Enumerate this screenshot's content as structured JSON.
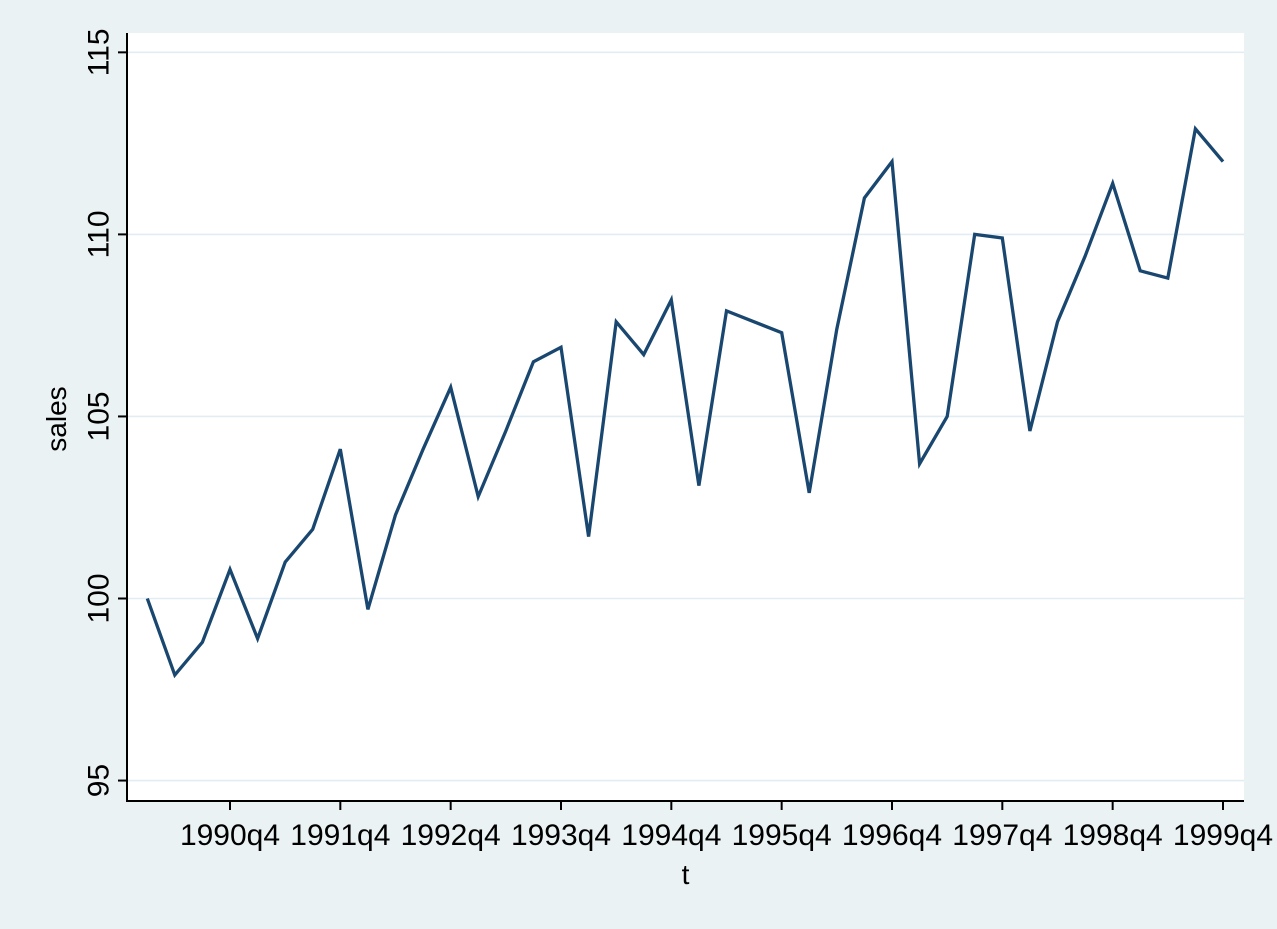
{
  "chart_data": {
    "type": "line",
    "title": "",
    "xlabel": "t",
    "ylabel": "sales",
    "x": [
      "1990q1",
      "1990q2",
      "1990q3",
      "1990q4",
      "1991q1",
      "1991q2",
      "1991q3",
      "1991q4",
      "1992q1",
      "1992q2",
      "1992q3",
      "1992q4",
      "1993q1",
      "1993q2",
      "1993q3",
      "1993q4",
      "1994q1",
      "1994q2",
      "1994q3",
      "1994q4",
      "1995q1",
      "1995q2",
      "1995q3",
      "1995q4",
      "1996q1",
      "1996q2",
      "1996q3",
      "1996q4",
      "1997q1",
      "1997q2",
      "1997q3",
      "1997q4",
      "1998q1",
      "1998q2",
      "1998q3",
      "1998q4",
      "1999q1",
      "1999q2",
      "1999q3",
      "1999q4"
    ],
    "series": [
      {
        "name": "sales",
        "values": [
          100.0,
          97.9,
          98.8,
          100.8,
          98.9,
          101.0,
          101.9,
          104.1,
          99.7,
          102.3,
          104.1,
          105.8,
          102.8,
          104.6,
          106.5,
          106.9,
          101.7,
          107.6,
          106.7,
          108.2,
          103.1,
          107.9,
          107.6,
          107.3,
          102.9,
          107.4,
          111.0,
          112.0,
          103.7,
          105.0,
          110.0,
          109.9,
          104.6,
          107.6,
          109.4,
          111.4,
          109.0,
          108.8,
          112.9,
          112.0
        ]
      }
    ],
    "yticks": [
      95,
      100,
      105,
      110,
      115
    ],
    "xtick_labels": [
      "1990q4",
      "1991q4",
      "1992q4",
      "1993q4",
      "1994q4",
      "1995q4",
      "1996q4",
      "1997q4",
      "1998q4",
      "1999q4"
    ],
    "ylim": [
      94.4,
      115.5
    ],
    "grid": "horizontal-only",
    "legend": "none",
    "line_color": "#1a476f",
    "background_color": "#eaf2f3",
    "plot_background": "#ffffff",
    "grid_color": "#e2edf3",
    "axis_color": "#000000",
    "text_color": "#000000"
  }
}
